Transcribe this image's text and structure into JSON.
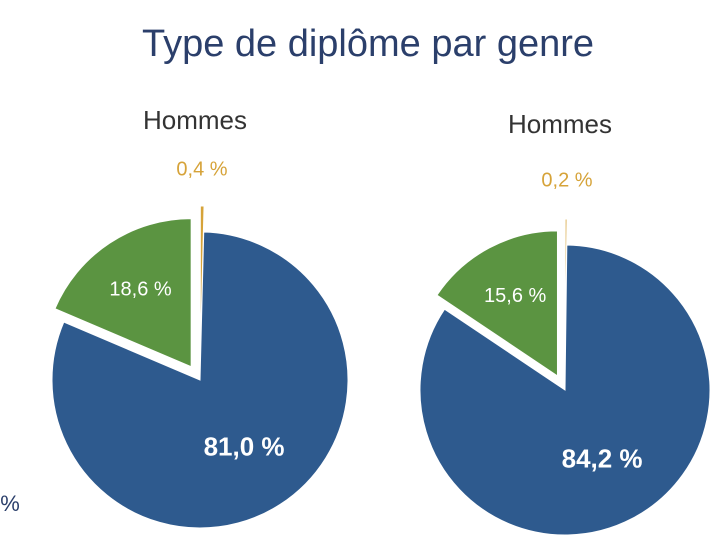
{
  "title": "Type de diplôme par genre",
  "clipped_text": "%",
  "chart_data": [
    {
      "type": "pie",
      "subtitle": "Hommes",
      "categories": [
        null,
        null,
        null
      ],
      "values": [
        0.4,
        81.0,
        18.6
      ],
      "value_labels": [
        "0,4 %",
        "81,0 %",
        "18,6 %"
      ],
      "colors": [
        "#d6a339",
        "#2e5a8e",
        "#5b9441"
      ]
    },
    {
      "type": "pie",
      "subtitle": "Hommes",
      "categories": [
        null,
        null,
        null
      ],
      "values": [
        0.2,
        84.2,
        15.6
      ],
      "value_labels": [
        "0,2 %",
        "84,2 %",
        "15,6 %"
      ],
      "colors": [
        "#d6a339",
        "#2e5a8e",
        "#5b9441"
      ]
    }
  ]
}
